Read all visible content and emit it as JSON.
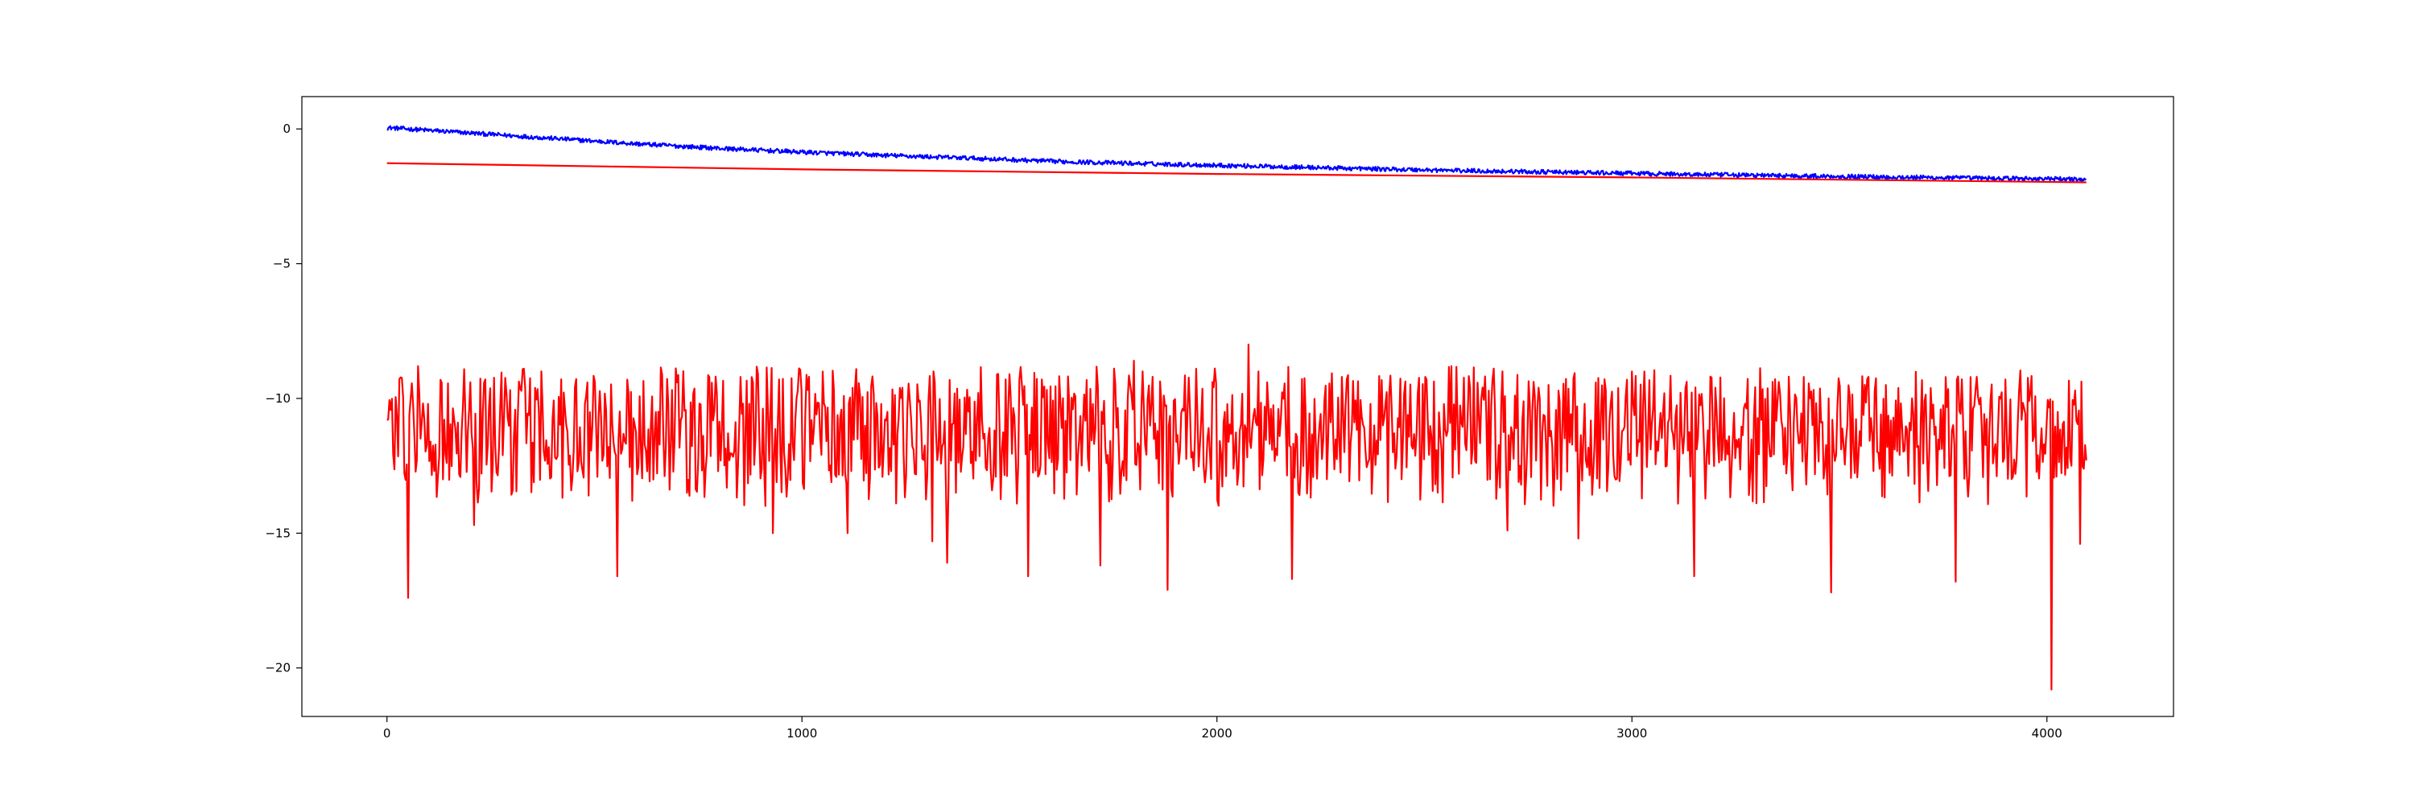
{
  "chart_data": {
    "type": "line",
    "title": "",
    "xlabel": "",
    "ylabel": "",
    "xlim": [
      -205,
      4305
    ],
    "ylim": [
      -21.8,
      1.2
    ],
    "grid": false,
    "legend": "none",
    "xticks": [
      0,
      1000,
      2000,
      3000,
      4000
    ],
    "yticks": [
      0,
      -5,
      -10,
      -15,
      -20
    ],
    "series": [
      {
        "color": "#0000ff",
        "style": "noisy-line",
        "points": [
          [
            0,
            0.05
          ],
          [
            200,
            -0.15
          ],
          [
            400,
            -0.35
          ],
          [
            600,
            -0.55
          ],
          [
            800,
            -0.72
          ],
          [
            1000,
            -0.86
          ],
          [
            1200,
            -0.98
          ],
          [
            1400,
            -1.08
          ],
          [
            1600,
            -1.2
          ],
          [
            1800,
            -1.28
          ],
          [
            2000,
            -1.35
          ],
          [
            2200,
            -1.42
          ],
          [
            2400,
            -1.49
          ],
          [
            2600,
            -1.55
          ],
          [
            2800,
            -1.6
          ],
          [
            3000,
            -1.65
          ],
          [
            3200,
            -1.7
          ],
          [
            3400,
            -1.74
          ],
          [
            3600,
            -1.78
          ],
          [
            3800,
            -1.82
          ],
          [
            4000,
            -1.85
          ],
          [
            4095,
            -1.88
          ]
        ],
        "noise_amplitude": 0.08
      },
      {
        "color": "#ff0000",
        "style": "line",
        "points": [
          [
            0,
            -1.27
          ],
          [
            1000,
            -1.5
          ],
          [
            2000,
            -1.67
          ],
          [
            3000,
            -1.8
          ],
          [
            4095,
            -1.98
          ]
        ]
      },
      {
        "color": "#ff0000",
        "style": "noisy-line",
        "mean": -11.1,
        "typical_range": [
          -14,
          -8.8
        ],
        "points": [
          [
            0,
            -10.8
          ],
          [
            50,
            -17.4
          ],
          [
            100,
            -10.2
          ],
          [
            210,
            -14.7
          ],
          [
            330,
            -8.9
          ],
          [
            555,
            -16.6
          ],
          [
            700,
            -9.4
          ],
          [
            930,
            -15.0
          ],
          [
            1050,
            -9.0
          ],
          [
            1110,
            -15.0
          ],
          [
            1315,
            -15.3
          ],
          [
            1350,
            -16.1
          ],
          [
            1500,
            -9.1
          ],
          [
            1545,
            -16.6
          ],
          [
            1720,
            -16.2
          ],
          [
            1800,
            -8.6
          ],
          [
            1880,
            -17.1
          ],
          [
            1950,
            -8.9
          ],
          [
            2020,
            -10.5
          ],
          [
            2075,
            -8.0
          ],
          [
            2100,
            -9.0
          ],
          [
            2180,
            -16.7
          ],
          [
            2300,
            -9.2
          ],
          [
            2400,
            -11.0
          ],
          [
            2565,
            -8.8
          ],
          [
            2700,
            -14.9
          ],
          [
            2800,
            -9.5
          ],
          [
            2870,
            -15.2
          ],
          [
            3000,
            -9.0
          ],
          [
            3150,
            -16.6
          ],
          [
            3200,
            -9.6
          ],
          [
            3480,
            -17.2
          ],
          [
            3570,
            -9.2
          ],
          [
            3650,
            -11.0
          ],
          [
            3780,
            -16.8
          ],
          [
            3900,
            -9.3
          ],
          [
            4000,
            -11.0
          ],
          [
            4012,
            -20.8
          ],
          [
            4025,
            -10.5
          ],
          [
            4080,
            -15.4
          ],
          [
            4095,
            -12.3
          ]
        ]
      }
    ]
  }
}
